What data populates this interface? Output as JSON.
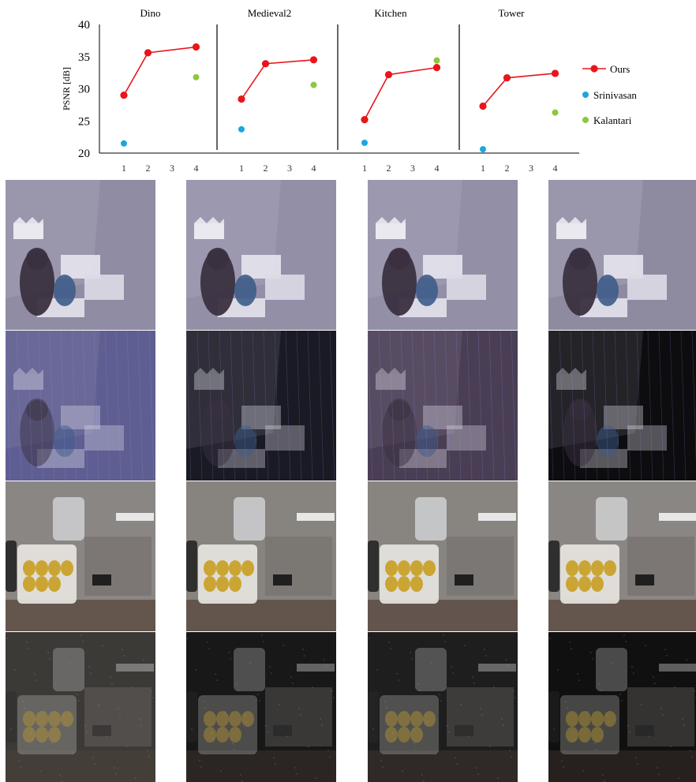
{
  "chart_data": {
    "type": "scatter",
    "ylabel": "PSNR [dB]",
    "xlabel": "",
    "ylim": [
      20,
      40
    ],
    "yticks": [
      "20",
      "25",
      "30",
      "35",
      "40"
    ],
    "xticks": [
      "1",
      "2",
      "3",
      "4"
    ],
    "grid": false,
    "legend_position": "right",
    "panels": [
      {
        "title": "Dino",
        "series": [
          {
            "name": "Ours",
            "style": "line",
            "x": [
              1,
              2,
              4
            ],
            "y": [
              29.0,
              35.6,
              36.5
            ]
          },
          {
            "name": "Srinivasan",
            "style": "point",
            "x": [
              1
            ],
            "y": [
              21.5
            ]
          },
          {
            "name": "Kalantari",
            "style": "point",
            "x": [
              4
            ],
            "y": [
              31.8
            ]
          }
        ]
      },
      {
        "title": "Medieval2",
        "series": [
          {
            "name": "Ours",
            "style": "line",
            "x": [
              1,
              2,
              4
            ],
            "y": [
              28.4,
              33.9,
              34.5
            ]
          },
          {
            "name": "Srinivasan",
            "style": "point",
            "x": [
              1
            ],
            "y": [
              23.7
            ]
          },
          {
            "name": "Kalantari",
            "style": "point",
            "x": [
              4
            ],
            "y": [
              30.6
            ]
          }
        ]
      },
      {
        "title": "Kitchen",
        "series": [
          {
            "name": "Ours",
            "style": "line",
            "x": [
              1,
              2,
              4
            ],
            "y": [
              25.2,
              32.2,
              33.3
            ]
          },
          {
            "name": "Srinivasan",
            "style": "point",
            "x": [
              1
            ],
            "y": [
              21.6
            ]
          },
          {
            "name": "Kalantari",
            "style": "point",
            "x": [
              4
            ],
            "y": [
              34.4
            ]
          }
        ]
      },
      {
        "title": "Tower",
        "series": [
          {
            "name": "Ours",
            "style": "line",
            "x": [
              1,
              2,
              4
            ],
            "y": [
              27.3,
              31.7,
              32.4
            ]
          },
          {
            "name": "Srinivasan",
            "style": "point",
            "x": [
              1
            ],
            "y": [
              20.6
            ]
          },
          {
            "name": "Kalantari",
            "style": "point",
            "x": [
              4
            ],
            "y": [
              26.3
            ]
          }
        ]
      }
    ],
    "colors": {
      "Ours": "#e8161b",
      "Srinivasan": "#1ba6e0",
      "Kalantari": "#8dc63f"
    }
  },
  "images": {
    "rows": [
      {
        "scene": "toys",
        "kind": "render",
        "tones": [
          "#8f8ca3",
          "#928fa7",
          "#928fa6",
          "#8e8ba1"
        ]
      },
      {
        "scene": "toys",
        "kind": "error",
        "tones": [
          "#5e5e92",
          "#1a1a24",
          "#4a3e55",
          "#0d0d10"
        ]
      },
      {
        "scene": "kitchen",
        "kind": "render",
        "tones": [
          "#8a8684",
          "#87837f",
          "#888480",
          "#8a8683"
        ]
      },
      {
        "scene": "kitchen",
        "kind": "error",
        "tones": [
          "#3c3a37",
          "#181818",
          "#1e1e1e",
          "#101010"
        ]
      }
    ]
  }
}
